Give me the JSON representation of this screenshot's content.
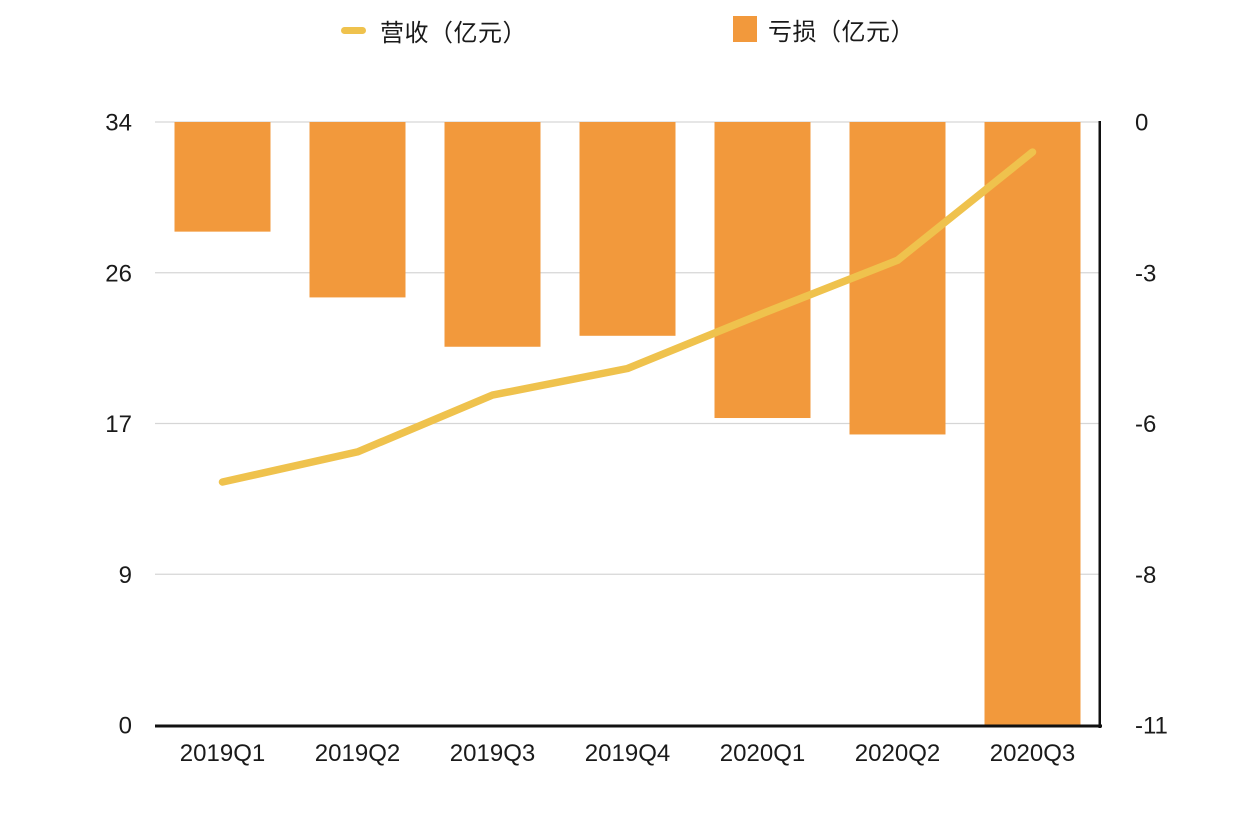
{
  "legend": {
    "items": [
      {
        "label": "营收（亿元）",
        "type": "line",
        "color": "#EFC24D"
      },
      {
        "label": "亏损（亿元）",
        "type": "bar",
        "color": "#F2993C"
      }
    ]
  },
  "chart_data": {
    "type": "bar",
    "subtype": "dual-axis bar + line combo",
    "categories": [
      "2019Q1",
      "2019Q2",
      "2019Q3",
      "2019Q4",
      "2020Q1",
      "2020Q2",
      "2020Q3"
    ],
    "series": [
      {
        "name": "营收（亿元）",
        "type": "line",
        "axis": "left",
        "color": "#EFC24D",
        "values": [
          13.7,
          15.4,
          18.6,
          20.1,
          23.2,
          26.2,
          32.3
        ]
      },
      {
        "name": "亏损（亿元）",
        "type": "bar",
        "axis": "right",
        "color": "#F2993C",
        "values": [
          -2.0,
          -3.2,
          -4.1,
          -3.9,
          -5.4,
          -5.7,
          -11.0
        ]
      }
    ],
    "left_axis": {
      "min": 0,
      "max": 34,
      "tick_labels_top_to_bottom": [
        "34",
        "26",
        "17",
        "9",
        "0"
      ]
    },
    "right_axis": {
      "min": -11,
      "max": 0,
      "tick_labels_top_to_bottom": [
        "0",
        "-3",
        "-6",
        "-8",
        "-11"
      ]
    },
    "grid": true,
    "legend_position": "top",
    "colors": {
      "bar": "#F2993C",
      "line": "#EFC24D",
      "grid": "#D6D6D6",
      "axis": "#111111",
      "text": "#1a1a1a"
    }
  }
}
